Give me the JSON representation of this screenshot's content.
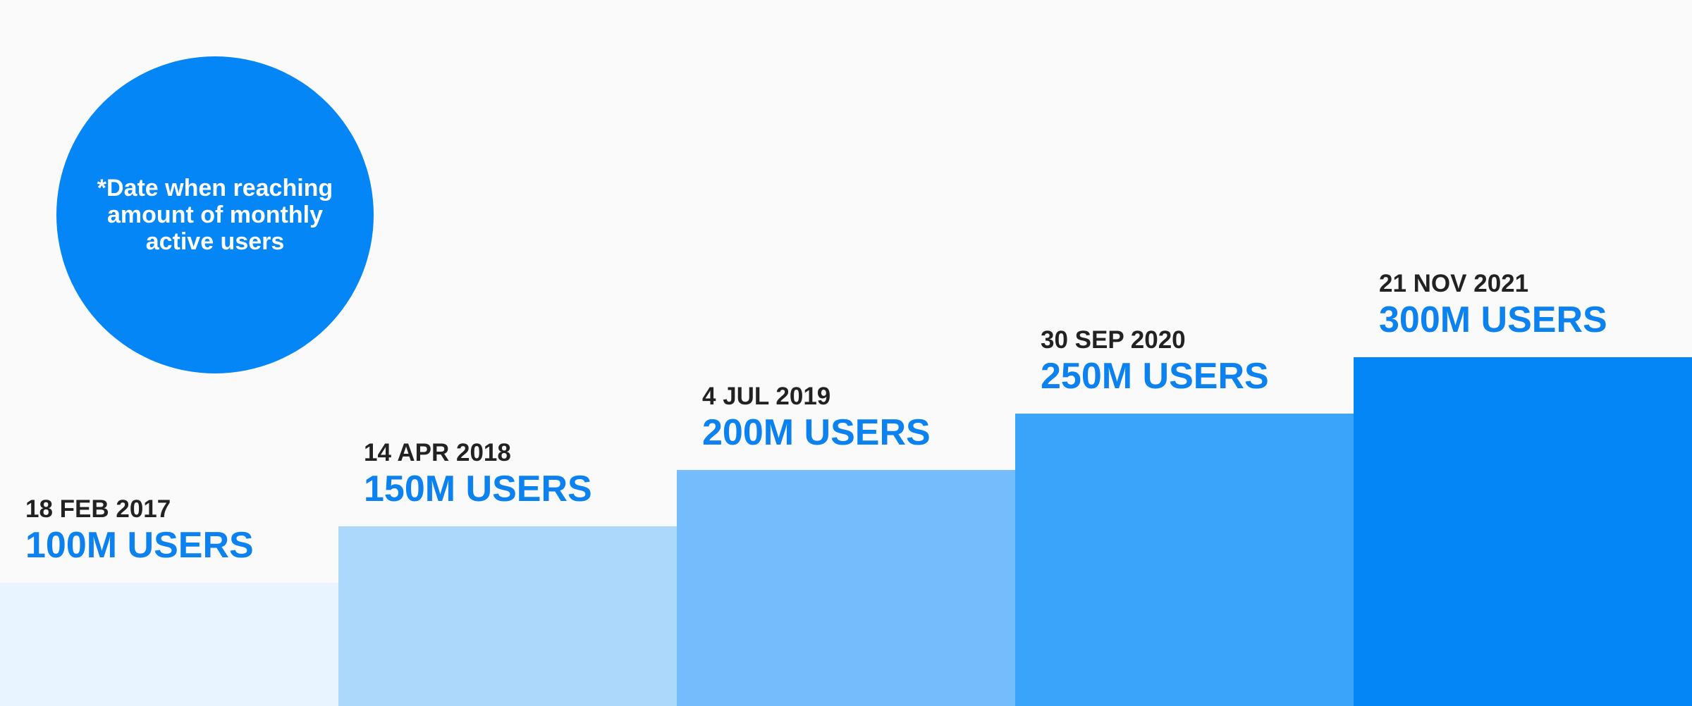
{
  "note": {
    "text": "*Date when reaching amount of monthly active users"
  },
  "colors": {
    "background": "#fafafa",
    "accent": "#0586f7",
    "value_text": "#0b82ef",
    "date_text": "#222222",
    "bars": [
      "#e8f4ff",
      "#acd8fc",
      "#74bcfb",
      "#3aa4fb",
      "#0586f7"
    ]
  },
  "chart_data": {
    "type": "bar",
    "title": "",
    "xlabel": "",
    "ylabel": "",
    "ylim": [
      0,
      300
    ],
    "grid": false,
    "legend": "none",
    "categories": [
      "18 FEB 2017",
      "14 APR 2018",
      "4 JUL 2019",
      "30 SEP 2020",
      "21 NOV 2021"
    ],
    "values": [
      100,
      150,
      200,
      250,
      300
    ],
    "value_labels": [
      "100M USERS",
      "150M USERS",
      "200M USERS",
      "250M USERS",
      "300M USERS"
    ]
  }
}
